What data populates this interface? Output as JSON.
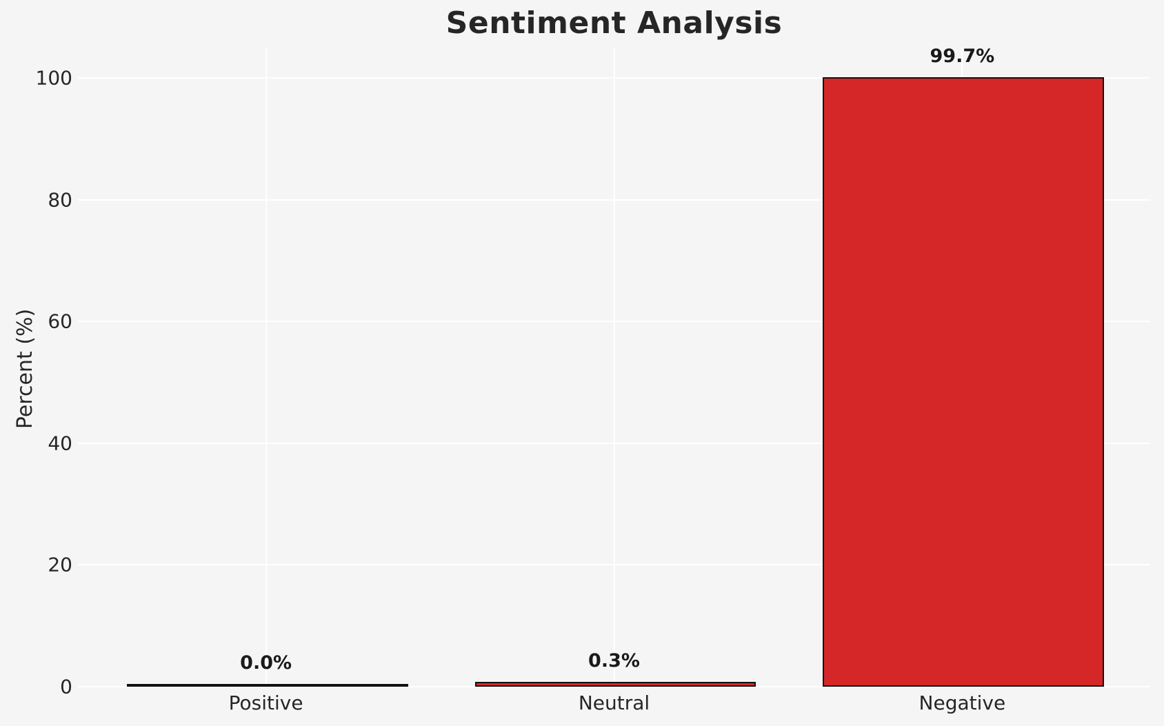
{
  "chart_data": {
    "type": "bar",
    "title": "Sentiment Analysis",
    "categories": [
      "Positive",
      "Neutral",
      "Negative"
    ],
    "values": [
      0.0,
      0.3,
      99.7
    ],
    "value_labels": [
      "0.0%",
      "0.3%",
      "99.7%"
    ],
    "xlabel": "",
    "ylabel": "Percent (%)",
    "ylim": [
      0,
      105
    ],
    "yticks": [
      0,
      20,
      40,
      60,
      80,
      100
    ],
    "grid": "on",
    "legend": "none",
    "colors": {
      "bar_fill": "#d62728",
      "bar_edge": "#111111",
      "background": "#f5f5f5",
      "gridline": "#ffffff",
      "text": "#262626"
    }
  }
}
